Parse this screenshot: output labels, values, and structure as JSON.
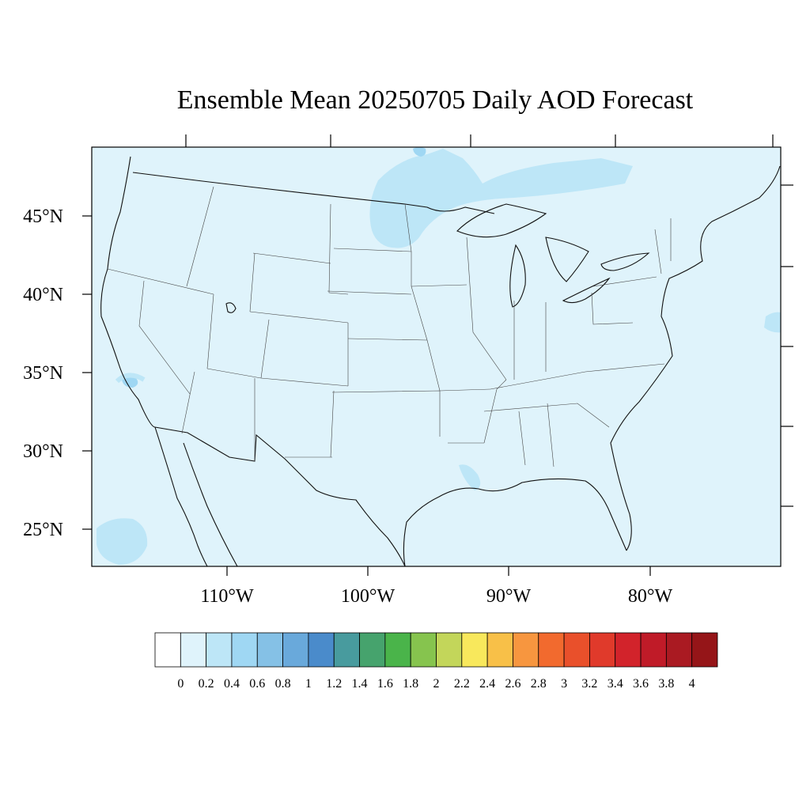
{
  "title": "Ensemble Mean 20250705 Daily AOD Forecast",
  "map": {
    "region": "Contiguous United States",
    "background_color": "#dff3fb",
    "lat_labels": [
      "45°N",
      "40°N",
      "35°N",
      "30°N",
      "25°N"
    ],
    "lon_labels": [
      "110°W",
      "100°W",
      "90°W",
      "80°W"
    ],
    "features": [
      {
        "name": "north-plains-plume",
        "aod": 0.3
      },
      {
        "name": "lake-superior-plume",
        "aod": 0.3
      },
      {
        "name": "pacific-offshore-patch",
        "aod": 0.3
      },
      {
        "name": "atlantic-offshore-patch",
        "aod": 0.3
      },
      {
        "name": "los-angeles-spot",
        "aod": 0.5
      },
      {
        "name": "louisiana-coast-patch",
        "aod": 0.3
      }
    ]
  },
  "colorbar": {
    "labels": [
      "0",
      "0.2",
      "0.4",
      "0.6",
      "0.8",
      "1",
      "1.2",
      "1.4",
      "1.6",
      "1.8",
      "2",
      "2.2",
      "2.4",
      "2.6",
      "2.8",
      "3",
      "3.2",
      "3.4",
      "3.6",
      "3.8",
      "4"
    ],
    "colors": [
      "#ffffff",
      "#dff3fb",
      "#bde6f7",
      "#9fd7f3",
      "#85c1e6",
      "#69a9db",
      "#4a8bcb",
      "#489b9e",
      "#46a36d",
      "#4ab44a",
      "#86c44e",
      "#c3d65a",
      "#f8e85c",
      "#f8c048",
      "#f7963f",
      "#f26a2e",
      "#e9502b",
      "#e03a2b",
      "#d2232b",
      "#c01b28",
      "#aa1a22",
      "#951518"
    ]
  }
}
